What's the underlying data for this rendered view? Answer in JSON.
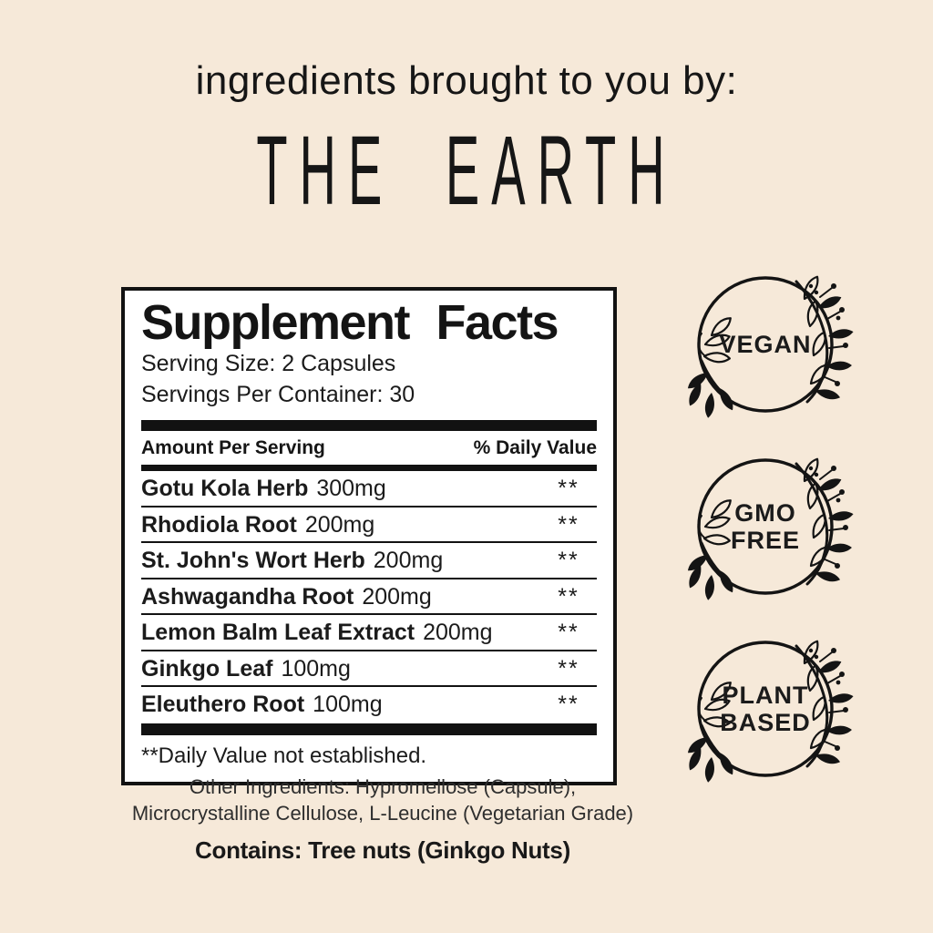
{
  "colors": {
    "background": "#f6e9d9",
    "panel_background": "#ffffff",
    "ink": "#1b1b1b"
  },
  "header": {
    "tagline": "ingredients brought to you by:",
    "brand": "THE EARTH"
  },
  "supplement_facts": {
    "title": "Supplement Facts",
    "serving_size": "Serving Size: 2 Capsules",
    "servings_per_container": "Servings Per Container: 30",
    "columns": {
      "amount_header": "Amount Per Serving",
      "daily_value_header": "% Daily Value"
    },
    "rows": [
      {
        "name": "Gotu Kola Herb",
        "amount": "300mg",
        "daily_value": "**"
      },
      {
        "name": "Rhodiola Root",
        "amount": "200mg",
        "daily_value": "**"
      },
      {
        "name": "St. John's Wort Herb",
        "amount": "200mg",
        "daily_value": "**"
      },
      {
        "name": "Ashwagandha Root",
        "amount": "200mg",
        "daily_value": "**"
      },
      {
        "name": "Lemon Balm Leaf Extract",
        "amount": "200mg",
        "daily_value": "**"
      },
      {
        "name": "Ginkgo Leaf",
        "amount": "100mg",
        "daily_value": "**"
      },
      {
        "name": "Eleuthero Root",
        "amount": "100mg",
        "daily_value": "**"
      }
    ],
    "footnote": "**Daily Value not established."
  },
  "other_ingredients": {
    "lines": [
      "Other Ingredients: Hypromellose (Capsule),",
      "Microcrystalline Cellulose, L-Leucine (Vegetarian Grade)"
    ]
  },
  "allergen_statement": "Contains: Tree nuts (Ginkgo Nuts)",
  "badges": [
    {
      "id": "vegan",
      "lines": [
        "VEGAN"
      ]
    },
    {
      "id": "gmo-free",
      "lines": [
        "GMO",
        "FREE"
      ]
    },
    {
      "id": "plant-based",
      "lines": [
        "PLANT",
        "BASED"
      ]
    }
  ]
}
